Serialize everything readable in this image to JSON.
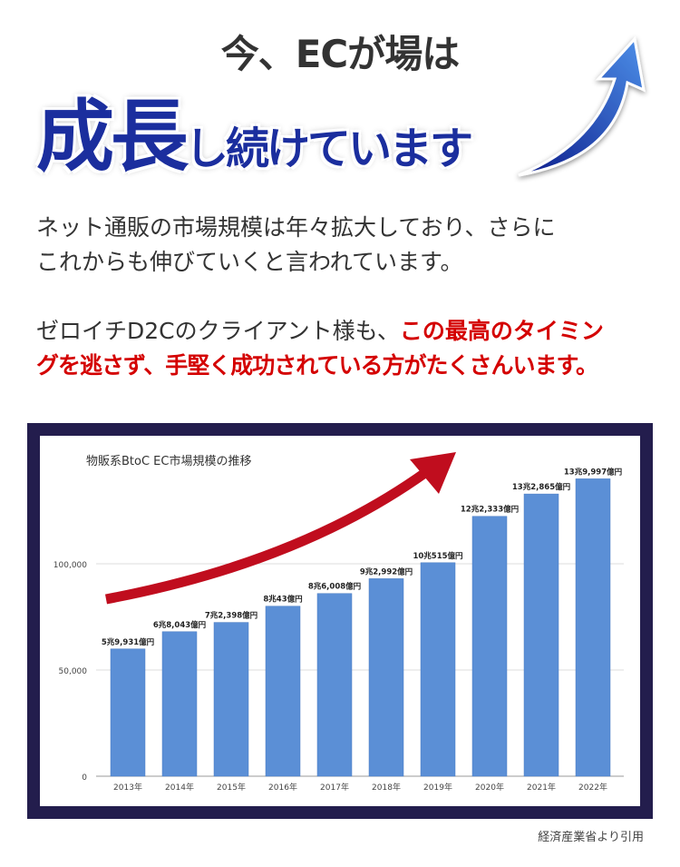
{
  "headline": {
    "top": "今、ECが場は",
    "main_big": "成長",
    "main_small": "し続けています"
  },
  "paragraph1": {
    "line1": "ネット通販の市場規模は年々拡大しており、さらに",
    "line2": "これからも伸びていくと言われています。"
  },
  "paragraph2": {
    "plain": "ゼロイチD2Cのクライアント様も、",
    "highlight1": "この最高のタイミン",
    "highlight2": "グを逃さず、手堅く成功されている方がたくさんいます。"
  },
  "colors": {
    "headline_blue": "#1b2e9e",
    "bar": "#5b8fd6",
    "trend_arrow": "#c00d1e",
    "frame": "#231d4d",
    "highlight": "#d40000"
  },
  "icons": {
    "headline_arrow": "blue-up-arrow-icon",
    "chart_arrow": "red-trend-arrow-icon"
  },
  "chart_data": {
    "type": "bar",
    "title": "物販系BtoC EC市場規模の推移",
    "categories": [
      "2013年",
      "2014年",
      "2015年",
      "2016年",
      "2017年",
      "2018年",
      "2019年",
      "2020年",
      "2021年",
      "2022年"
    ],
    "values": [
      59931,
      68043,
      72398,
      80043,
      86008,
      92992,
      100515,
      122333,
      132865,
      139997
    ],
    "data_labels": [
      "5兆9,931億円",
      "6兆8,043億円",
      "7兆2,398億円",
      "8兆43億円",
      "8兆6,008億円",
      "9兆2,992億円",
      "10兆515億円",
      "12兆2,333億円",
      "13兆2,865億円",
      "13兆9,997億円"
    ],
    "yticks": [
      0,
      50000,
      100000
    ],
    "ytick_labels": [
      "0",
      "50,000",
      "100,000"
    ],
    "ylim": [
      0,
      150000
    ],
    "grid": true,
    "legend": "none"
  },
  "source": "経済産業省より引用"
}
